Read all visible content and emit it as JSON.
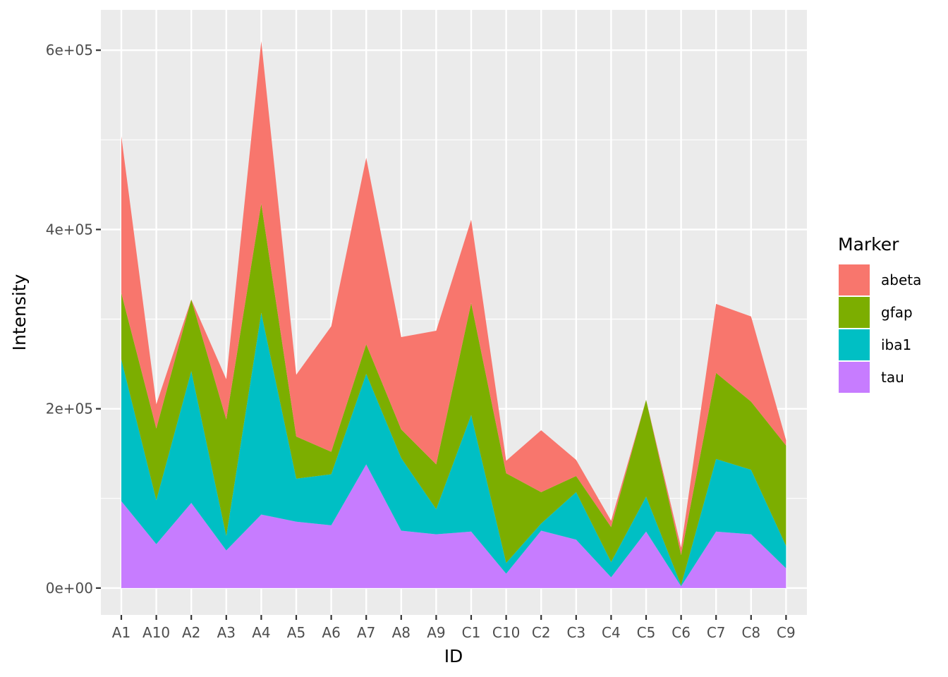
{
  "chart_data": {
    "type": "area",
    "stacked": true,
    "xlabel": "ID",
    "ylabel": "Intensity",
    "categories": [
      "A1",
      "A10",
      "A2",
      "A3",
      "A4",
      "A5",
      "A6",
      "A7",
      "A8",
      "A9",
      "C1",
      "C10",
      "C2",
      "C3",
      "C4",
      "C5",
      "C6",
      "C7",
      "C8",
      "C9"
    ],
    "ylim": [
      -30000,
      645000
    ],
    "yticks": [
      0,
      200000,
      400000,
      600000
    ],
    "ytick_labels": [
      "0e+00",
      "2e+05",
      "4e+05",
      "6e+05"
    ],
    "grid": true,
    "legend": {
      "title": "Marker",
      "position": "right"
    },
    "series": [
      {
        "name": "tau",
        "color": "#C77CFF",
        "values": [
          97000,
          49000,
          95000,
          42000,
          82000,
          74000,
          70000,
          138000,
          64000,
          60000,
          63000,
          16000,
          64000,
          54000,
          12000,
          63000,
          2000,
          63000,
          60000,
          22000
        ]
      },
      {
        "name": "iba1",
        "color": "#00BFC4",
        "values": [
          158000,
          49000,
          147000,
          16000,
          225000,
          48000,
          57000,
          101000,
          81000,
          28000,
          130000,
          12000,
          8000,
          53000,
          17000,
          39000,
          1000,
          81000,
          72000,
          25000
        ]
      },
      {
        "name": "gfap",
        "color": "#7CAE00",
        "values": [
          74000,
          80000,
          80000,
          130000,
          122000,
          47000,
          25000,
          33000,
          32000,
          50000,
          125000,
          100000,
          35000,
          18000,
          39000,
          108000,
          34000,
          96000,
          76000,
          112000
        ]
      },
      {
        "name": "abeta",
        "color": "#F8766D",
        "values": [
          175000,
          27000,
          0,
          45000,
          181000,
          69000,
          140000,
          208000,
          103000,
          149000,
          93000,
          14000,
          69000,
          18000,
          7000,
          0,
          8000,
          77000,
          95000,
          6000
        ]
      }
    ]
  }
}
